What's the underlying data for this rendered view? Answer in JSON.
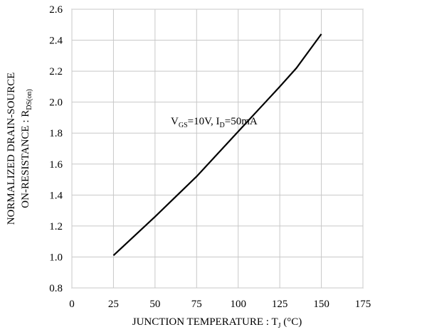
{
  "chart_data": {
    "type": "line",
    "ylabel": [
      [
        "NORMALIZED DRAIN-SOURCE"
      ],
      [
        "ON-RESISTANCE : R",
        "DS(on)"
      ]
    ],
    "xlabel": [
      "JUNCTION TEMPERATURE : T",
      "J",
      " (°C)"
    ],
    "annotation": [
      "V",
      "GS",
      "=10V, I",
      "D",
      "=50mA"
    ],
    "x": [
      25,
      50,
      75,
      100,
      125,
      135,
      150
    ],
    "series": [
      {
        "color": "#000000",
        "values": [
          1.01,
          1.26,
          1.52,
          1.81,
          2.1,
          2.22,
          2.44
        ]
      }
    ],
    "xlim": [
      0,
      175
    ],
    "xticks": [
      0,
      25,
      50,
      75,
      100,
      125,
      150,
      175
    ],
    "ylim": [
      0.8,
      2.6
    ],
    "yticks": [
      0.8,
      {
        "value": 1.0,
        "label": "1.0"
      },
      1.2,
      1.4,
      1.6,
      1.8,
      {
        "value": 2.0,
        "label": "2.0"
      },
      2.2,
      2.4,
      2.6
    ],
    "grid": true
  }
}
